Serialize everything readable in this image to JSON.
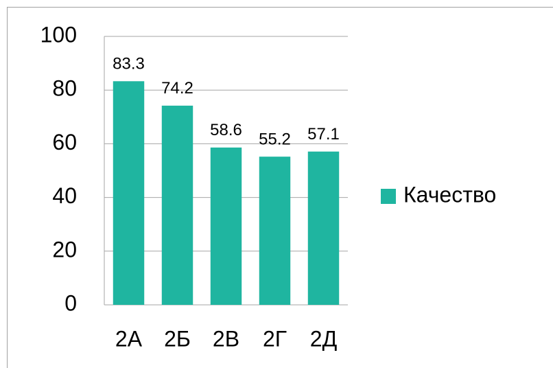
{
  "chart_data": {
    "type": "bar",
    "categories": [
      "2А",
      "2Б",
      "2В",
      "2Г",
      "2Д"
    ],
    "series": [
      {
        "name": "Качество",
        "color": "#1fb5a0",
        "values": [
          83.3,
          74.2,
          58.6,
          55.2,
          57.1
        ]
      }
    ],
    "ylim": [
      0,
      100
    ],
    "yticks": [
      0,
      20,
      40,
      60,
      80,
      100
    ],
    "grid": true,
    "legend": "right"
  }
}
